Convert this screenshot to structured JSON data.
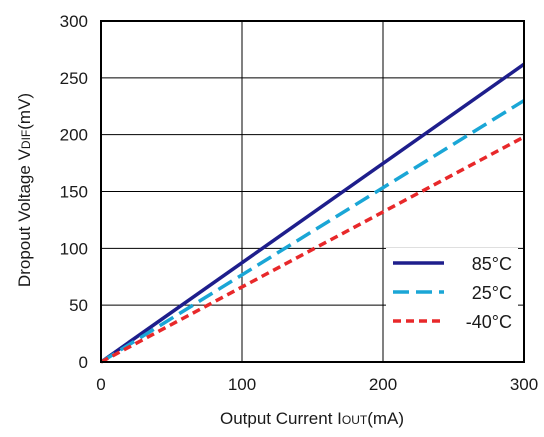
{
  "chart_data": {
    "type": "line",
    "xlabel": "Output Current I",
    "xlabel_sub": "OUT",
    "xlabel_unit": "(mA)",
    "ylabel": "Dropout Voltage V",
    "ylabel_sub": "DIF",
    "ylabel_unit": "(mV)",
    "xlim": [
      0,
      300
    ],
    "ylim": [
      0,
      300
    ],
    "x_ticks": [
      0,
      100,
      200,
      300
    ],
    "y_ticks": [
      0,
      50,
      100,
      150,
      200,
      250,
      300
    ],
    "grid": true,
    "legend_position": "bottom-right",
    "series": [
      {
        "name": "85°C",
        "color": "#1e1e8c",
        "dash": "solid",
        "x": [
          0,
          300
        ],
        "y": [
          0,
          262
        ]
      },
      {
        "name": "25°C",
        "color": "#1aa6d6",
        "dash": "dashed",
        "x": [
          0,
          300
        ],
        "y": [
          0,
          230
        ]
      },
      {
        "name": "-40°C",
        "color": "#e8282a",
        "dash": "dotted",
        "x": [
          0,
          300
        ],
        "y": [
          0,
          198
        ]
      }
    ]
  }
}
